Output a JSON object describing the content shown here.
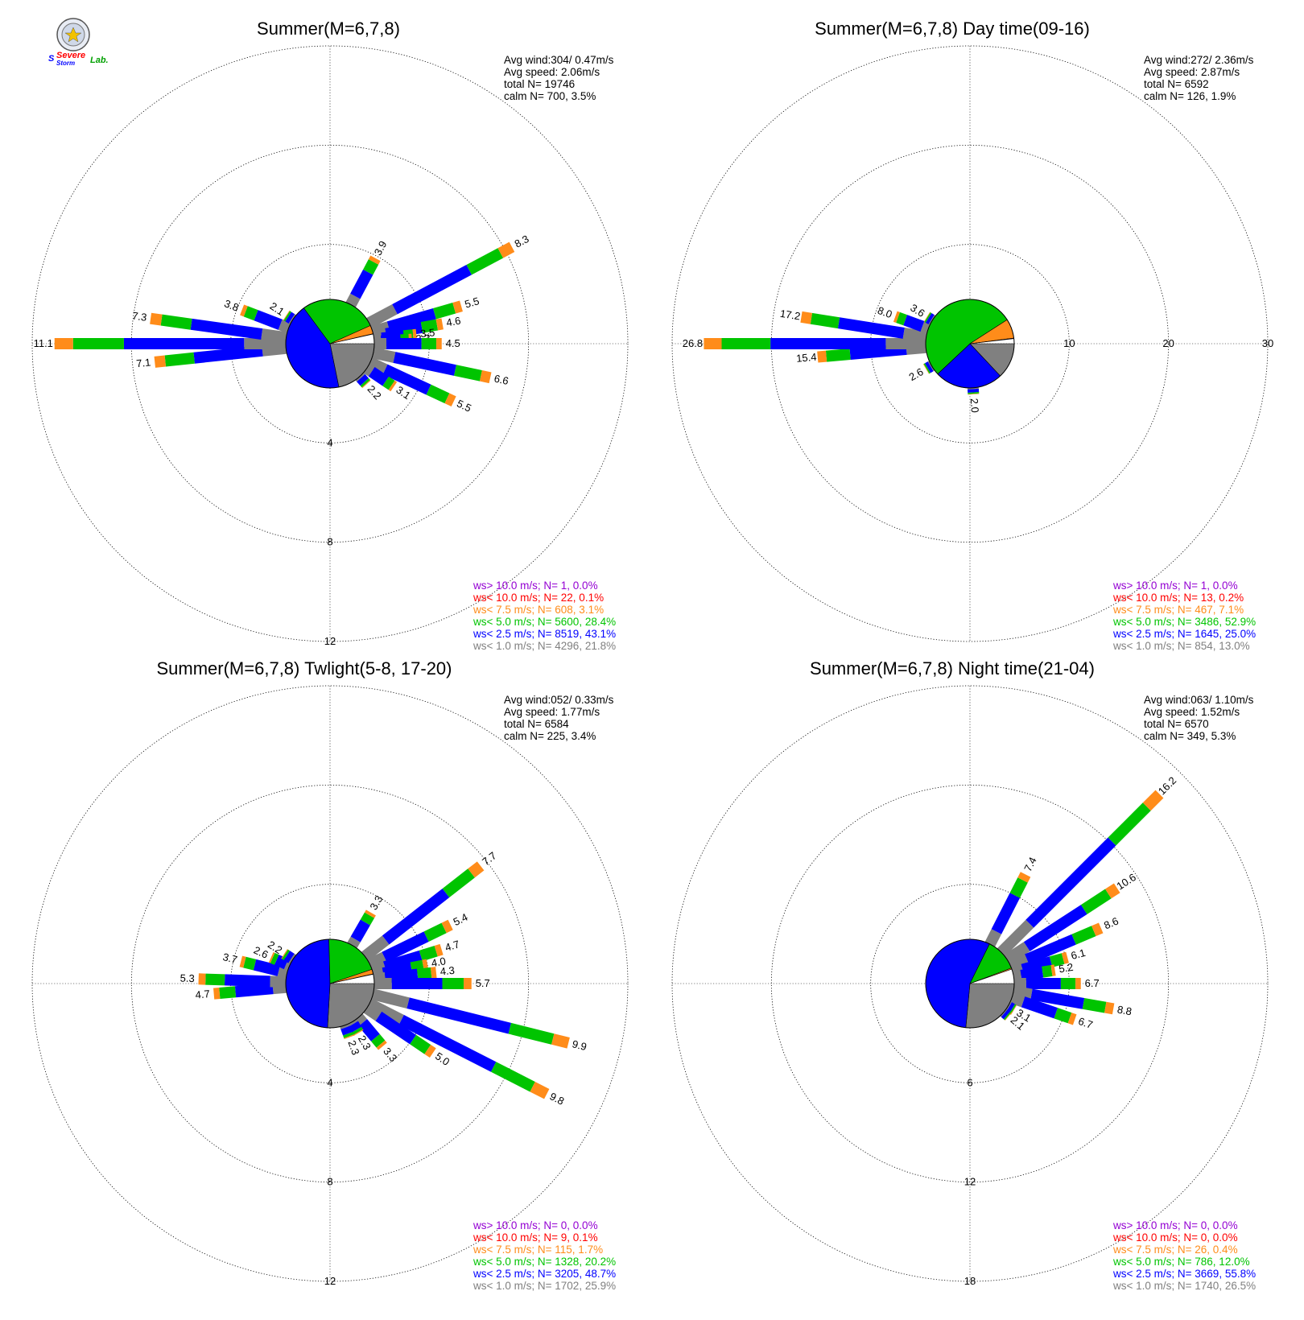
{
  "colors": {
    "gt10": "#9400d3",
    "lt10": "#ff0000",
    "lt7_5": "#ff8c1a",
    "lt5": "#00c400",
    "lt2_5": "#0000ff",
    "lt1": "#808080"
  },
  "logo": {
    "text_severe": "Severe",
    "text_storm": "Storm",
    "text_lab": "Lab."
  },
  "chart_data": [
    {
      "type": "polar-bar (wind rose)",
      "title": "Summer(M=6,7,8)",
      "stats": [
        "Avg wind:304/ 0.47m/s",
        "Avg speed: 2.06m/s",
        "total N=      19746",
        "calm N=    700,   3.5%"
      ],
      "rings": [
        4,
        8,
        12
      ],
      "ring_labels": [
        "4",
        "8",
        "12"
      ],
      "rmax": 12,
      "legend": [
        "ws> 10.0 m/s; N=     1,  0.0%",
        "ws< 10.0 m/s; N=    22,  0.1%",
        "ws<  7.5 m/s; N=   608,  3.1%",
        "ws<  5.0 m/s; N=  5600, 28.4%",
        "ws<  2.5 m/s; N=  8519, 43.1%",
        "ws<  1.0 m/s; N=  4296, 21.8%"
      ],
      "pie": [
        21.8,
        43.1,
        28.4,
        3.1,
        0.1,
        0.0
      ],
      "direction_labels": [
        {
          "dir": 62,
          "value": "8.3"
        },
        {
          "dir": 28,
          "value": "3.9"
        },
        {
          "dir": 74,
          "value": "5.5"
        },
        {
          "dir": 80,
          "value": "4.6"
        },
        {
          "dir": 84,
          "value": "3.5"
        },
        {
          "dir": 87,
          "value": "3.3"
        },
        {
          "dir": 90,
          "value": "4.5"
        },
        {
          "dir": 102,
          "value": "6.6"
        },
        {
          "dir": 115,
          "value": "5.5"
        },
        {
          "dir": 124,
          "value": "3.1"
        },
        {
          "dir": 138,
          "value": "2.2"
        },
        {
          "dir": 264,
          "value": "7.1"
        },
        {
          "dir": 270,
          "value": "11.1"
        },
        {
          "dir": 278,
          "value": "7.3"
        },
        {
          "dir": 291,
          "value": "3.8"
        },
        {
          "dir": 303,
          "value": "2.1"
        }
      ]
    },
    {
      "type": "polar-bar (wind rose)",
      "title": "Summer(M=6,7,8) Day time(09-16)",
      "stats": [
        "Avg wind:272/ 2.36m/s",
        "Avg speed: 2.87m/s",
        "total N=       6592",
        "calm N=    126,   1.9%"
      ],
      "rings": [
        10,
        20,
        30
      ],
      "ring_labels": [
        "10",
        "20",
        "30"
      ],
      "rmax": 30,
      "legend": [
        "ws> 10.0 m/s; N=     1,  0.0%",
        "ws< 10.0 m/s; N=    13,  0.2%",
        "ws<  7.5 m/s; N=   467,  7.1%",
        "ws<  5.0 m/s; N=  3486, 52.9%",
        "ws<  2.5 m/s; N=  1645, 25.0%",
        "ws<  1.0 m/s; N=   854, 13.0%"
      ],
      "pie": [
        13.0,
        25.0,
        52.9,
        7.1,
        0.2,
        0.0
      ],
      "direction_labels": [
        {
          "dir": 265,
          "value": "15.4"
        },
        {
          "dir": 270,
          "value": "26.8"
        },
        {
          "dir": 279,
          "value": "17.2"
        },
        {
          "dir": 290,
          "value": "8.0"
        },
        {
          "dir": 302,
          "value": "3.6"
        },
        {
          "dir": 240,
          "value": "2.6"
        },
        {
          "dir": 176,
          "value": "2.0"
        }
      ]
    },
    {
      "type": "polar-bar (wind rose)",
      "title": "Summer(M=6,7,8) Twlight(5-8, 17-20)",
      "stats": [
        "Avg wind:052/ 0.33m/s",
        "Avg speed: 1.77m/s",
        "total N=       6584",
        "calm N=    225,   3.4%"
      ],
      "rings": [
        4,
        8,
        12
      ],
      "ring_labels": [
        "4",
        "8",
        "12"
      ],
      "rmax": 12,
      "legend": [
        "ws> 10.0 m/s; N=     0,  0.0%",
        "ws< 10.0 m/s; N=     9,  0.1%",
        "ws<  7.5 m/s; N=   115,  1.7%",
        "ws<  5.0 m/s; N=  1328, 20.2%",
        "ws<  2.5 m/s; N=  3205, 48.7%",
        "ws<  1.0 m/s; N=  1702, 25.9%"
      ],
      "pie": [
        25.9,
        48.7,
        20.2,
        1.7,
        0.1,
        0.0
      ],
      "direction_labels": [
        {
          "dir": 52,
          "value": "7.7"
        },
        {
          "dir": 30,
          "value": "3.3"
        },
        {
          "dir": 64,
          "value": "5.4"
        },
        {
          "dir": 73,
          "value": "4.7"
        },
        {
          "dir": 79,
          "value": "4.0"
        },
        {
          "dir": 84,
          "value": "4.3"
        },
        {
          "dir": 90,
          "value": "5.7"
        },
        {
          "dir": 104,
          "value": "9.9"
        },
        {
          "dir": 117,
          "value": "9.8"
        },
        {
          "dir": 124,
          "value": "5.0"
        },
        {
          "dir": 140,
          "value": "3.3"
        },
        {
          "dir": 150,
          "value": "2.3"
        },
        {
          "dir": 160,
          "value": "2.3"
        },
        {
          "dir": 265,
          "value": "4.7"
        },
        {
          "dir": 272,
          "value": "5.3"
        },
        {
          "dir": 284,
          "value": "3.7"
        },
        {
          "dir": 294,
          "value": "2.6"
        },
        {
          "dir": 303,
          "value": "2.2"
        }
      ]
    },
    {
      "type": "polar-bar (wind rose)",
      "title": "Summer(M=6,7,8) Night time(21-04)",
      "stats": [
        "Avg wind:063/ 1.10m/s",
        "Avg speed: 1.52m/s",
        "total N=       6570",
        "calm N=    349,   5.3%"
      ],
      "rings": [
        6,
        12,
        18
      ],
      "ring_labels": [
        "6",
        "12",
        "18"
      ],
      "rmax": 18,
      "legend": [
        "ws> 10.0 m/s; N=     0,  0.0%",
        "ws< 10.0 m/s; N=     0,  0.0%",
        "ws<  7.5 m/s; N=    26,  0.4%",
        "ws<  5.0 m/s; N=   786, 12.0%",
        "ws<  2.5 m/s; N=  3669, 55.8%",
        "ws<  1.0 m/s; N=  1740, 26.5%"
      ],
      "pie": [
        26.5,
        55.8,
        12.0,
        0.4,
        0.0,
        0.0
      ],
      "direction_labels": [
        {
          "dir": 45,
          "value": "16.2"
        },
        {
          "dir": 27,
          "value": "7.4"
        },
        {
          "dir": 57,
          "value": "10.6"
        },
        {
          "dir": 67,
          "value": "8.6"
        },
        {
          "dir": 75,
          "value": "6.1"
        },
        {
          "dir": 81,
          "value": "5.2"
        },
        {
          "dir": 90,
          "value": "6.7"
        },
        {
          "dir": 100,
          "value": "8.8"
        },
        {
          "dir": 109,
          "value": "6.7"
        },
        {
          "dir": 121,
          "value": "3.1"
        },
        {
          "dir": 130,
          "value": "2.1"
        }
      ]
    }
  ]
}
